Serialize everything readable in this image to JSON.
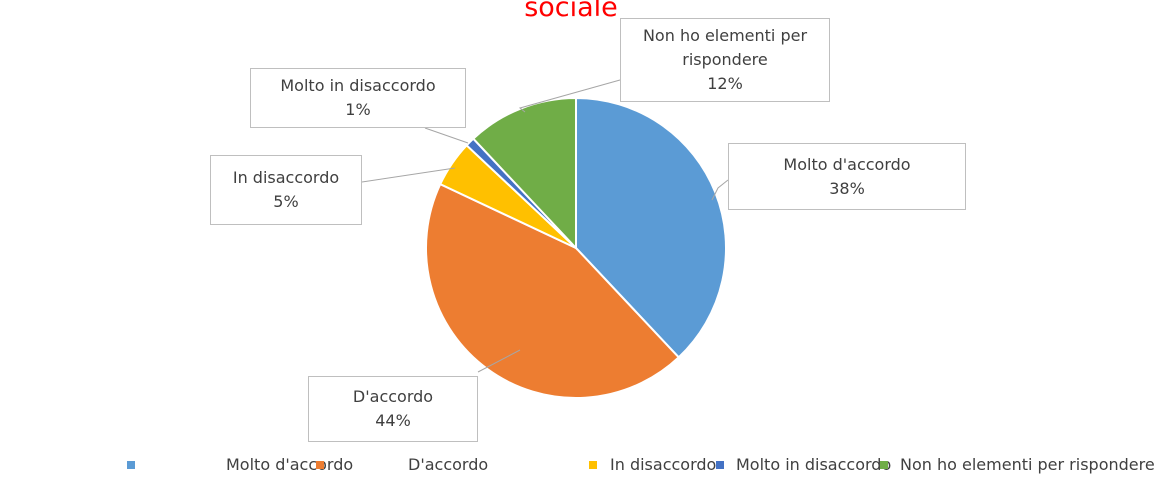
{
  "chart_data": {
    "type": "pie",
    "title": "sociale",
    "categories": [
      "Molto d'accordo",
      "D'accordo",
      "In disaccordo",
      "Molto in disaccordo",
      "Non ho elementi per rispondere"
    ],
    "values": [
      38,
      44,
      5,
      1,
      12
    ],
    "value_labels": [
      "38%",
      "44%",
      "5%",
      "1%",
      "12%"
    ],
    "colors": [
      "#5b9bd5",
      "#ed7d31",
      "#ffc000",
      "#4472c4",
      "#70ad47"
    ],
    "legend": "bottom"
  }
}
